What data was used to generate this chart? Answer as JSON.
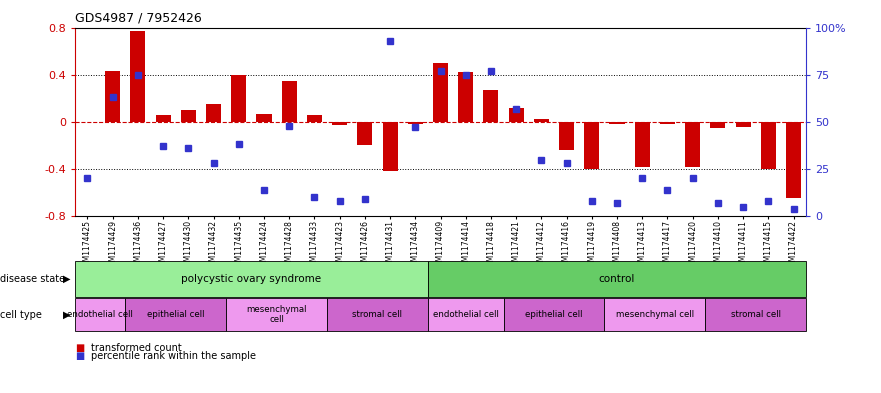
{
  "title": "GDS4987 / 7952426",
  "samples": [
    "GSM1174425",
    "GSM1174429",
    "GSM1174436",
    "GSM1174427",
    "GSM1174430",
    "GSM1174432",
    "GSM1174435",
    "GSM1174424",
    "GSM1174428",
    "GSM1174433",
    "GSM1174423",
    "GSM1174426",
    "GSM1174431",
    "GSM1174434",
    "GSM1174409",
    "GSM1174414",
    "GSM1174418",
    "GSM1174421",
    "GSM1174412",
    "GSM1174416",
    "GSM1174419",
    "GSM1174408",
    "GSM1174413",
    "GSM1174417",
    "GSM1174420",
    "GSM1174410",
    "GSM1174411",
    "GSM1174415",
    "GSM1174422"
  ],
  "bar_values": [
    0.0,
    0.43,
    0.77,
    0.06,
    0.1,
    0.15,
    0.4,
    0.07,
    0.35,
    0.06,
    -0.03,
    -0.2,
    -0.42,
    -0.02,
    0.5,
    0.42,
    0.27,
    0.12,
    0.02,
    -0.24,
    -0.4,
    -0.02,
    -0.38,
    -0.02,
    -0.38,
    -0.05,
    -0.04,
    -0.4,
    -0.65
  ],
  "percentile_values": [
    20,
    63,
    75,
    37,
    36,
    28,
    38,
    14,
    48,
    10,
    8,
    9,
    93,
    47,
    77,
    75,
    77,
    57,
    30,
    28,
    8,
    7,
    20,
    14,
    20,
    7,
    5,
    8,
    4
  ],
  "bar_color": "#CC0000",
  "point_color": "#3333CC",
  "ylim": [
    -0.8,
    0.8
  ],
  "y2lim": [
    0,
    100
  ],
  "yticks": [
    -0.8,
    -0.4,
    0.0,
    0.4,
    0.8
  ],
  "y2ticks": [
    0,
    25,
    50,
    75,
    100
  ],
  "hlines_dotted": [
    0.4,
    -0.4
  ],
  "hline_zero_color": "#CC0000",
  "disease_state_groups": [
    {
      "label": "polycystic ovary syndrome",
      "start": 0,
      "end": 14,
      "color": "#99EE99"
    },
    {
      "label": "control",
      "start": 14,
      "end": 29,
      "color": "#66CC66"
    }
  ],
  "cell_type_groups": [
    {
      "label": "endothelial cell",
      "start": 0,
      "end": 2,
      "color": "#EE99EE"
    },
    {
      "label": "epithelial cell",
      "start": 2,
      "end": 6,
      "color": "#CC66CC"
    },
    {
      "label": "mesenchymal\ncell",
      "start": 6,
      "end": 10,
      "color": "#EE99EE"
    },
    {
      "label": "stromal cell",
      "start": 10,
      "end": 14,
      "color": "#CC66CC"
    },
    {
      "label": "endothelial cell",
      "start": 14,
      "end": 17,
      "color": "#EE99EE"
    },
    {
      "label": "epithelial cell",
      "start": 17,
      "end": 21,
      "color": "#CC66CC"
    },
    {
      "label": "mesenchymal cell",
      "start": 21,
      "end": 25,
      "color": "#EE99EE"
    },
    {
      "label": "stromal cell",
      "start": 25,
      "end": 29,
      "color": "#CC66CC"
    }
  ],
  "legend_items": [
    {
      "label": "transformed count",
      "color": "#CC0000"
    },
    {
      "label": "percentile rank within the sample",
      "color": "#3333CC"
    }
  ],
  "disease_label": "disease state",
  "cell_type_label": "cell type",
  "background_color": "#FFFFFF"
}
